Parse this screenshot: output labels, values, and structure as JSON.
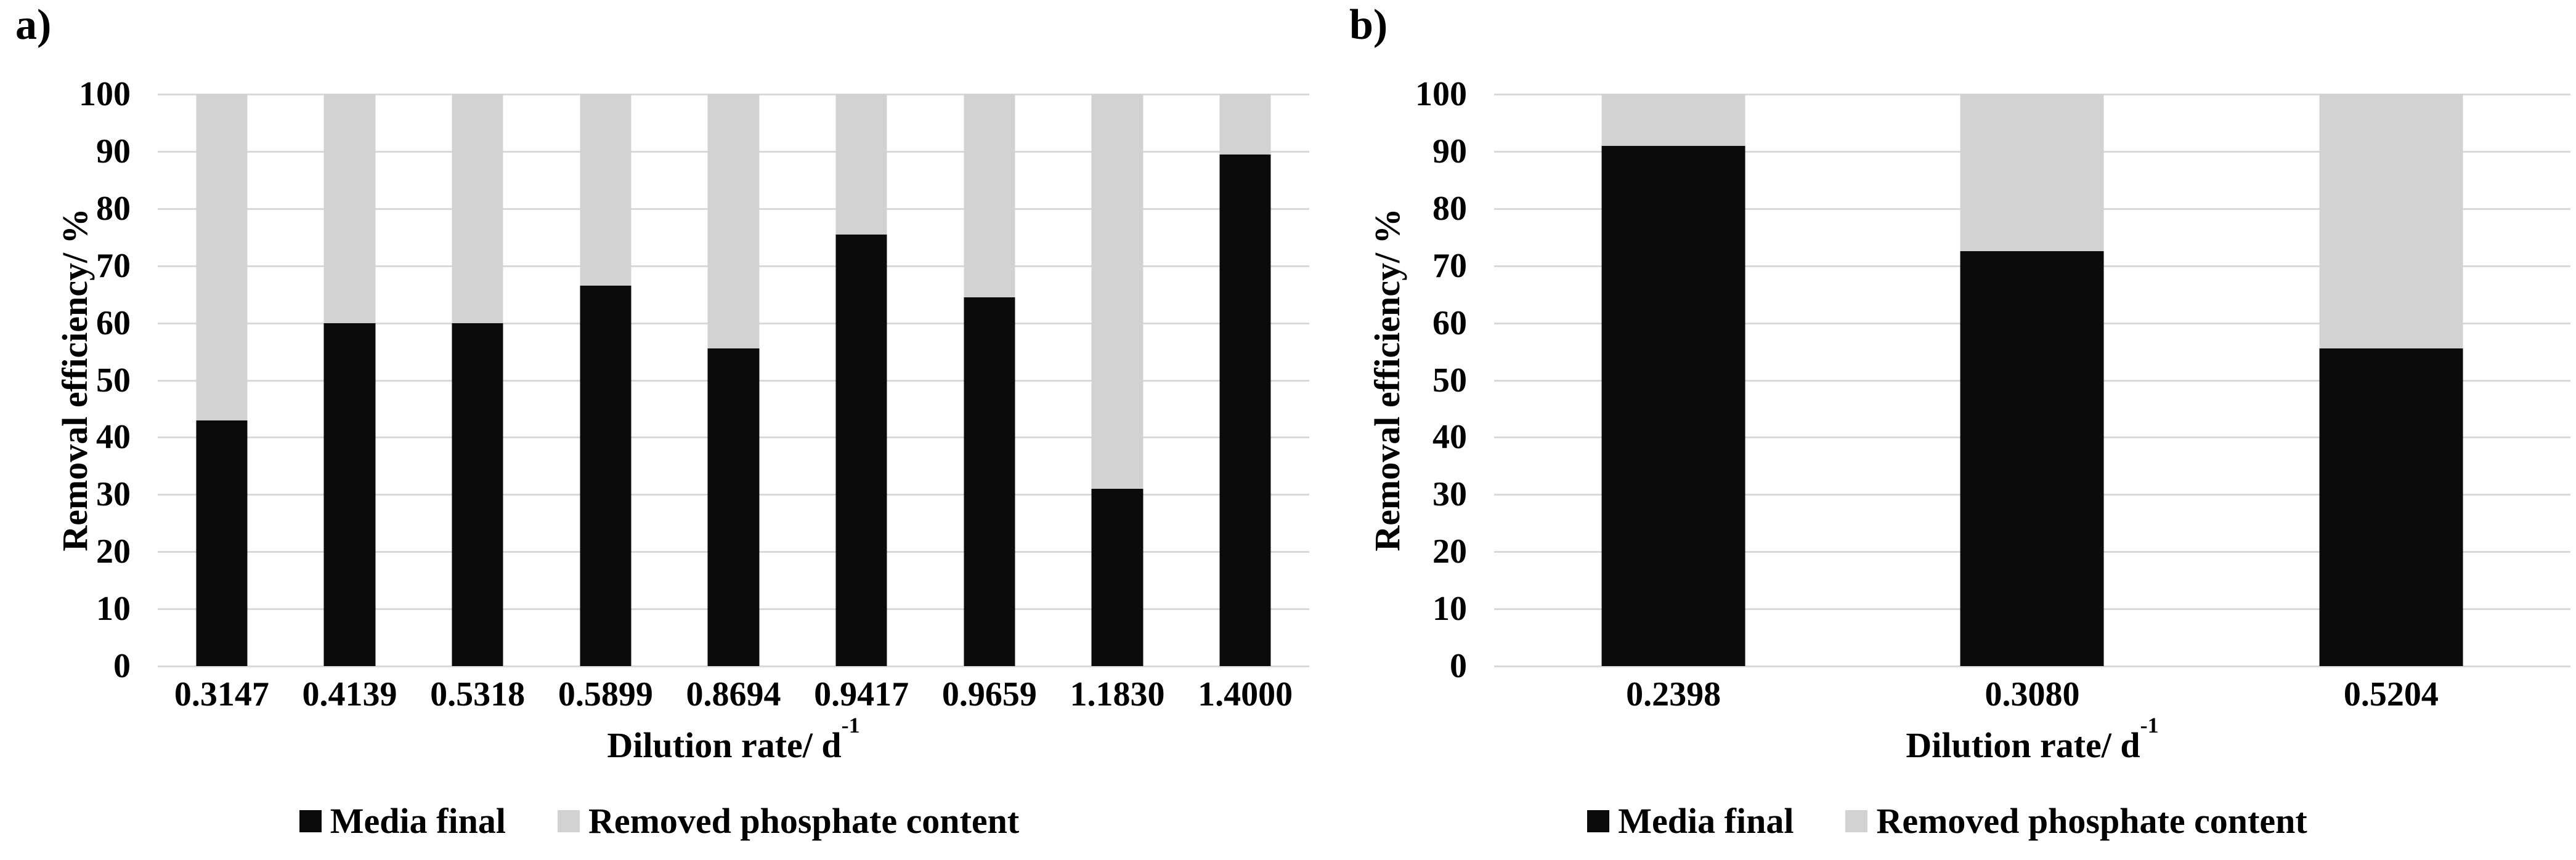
{
  "colors": {
    "media_final": "#0b0b0b",
    "removed_phosphate": "#d2d2d2",
    "gridline": "#d9d9d9",
    "background": "#ffffff",
    "text": "#000000"
  },
  "legend": {
    "media_final_label": "Media final",
    "removed_label": "Removed phosphate content"
  },
  "chart_data": [
    {
      "type": "bar",
      "stacked": true,
      "panel_label": "a)",
      "title": "",
      "xlabel": "Dilution rate/ d⁻¹",
      "xlabel_base": "Dilution rate/ d",
      "xlabel_sup": "-1",
      "ylabel": "Removal efficiency/ %",
      "ylim": [
        0,
        100
      ],
      "y_ticks": [
        100,
        90,
        80,
        70,
        60,
        50,
        40,
        30,
        20,
        10,
        0
      ],
      "grid": true,
      "legend_position": "bottom",
      "bar_width_fraction": 0.4,
      "categories": [
        "0.3147",
        "0.4139",
        "0.5318",
        "0.5899",
        "0.8694",
        "0.9417",
        "0.9659",
        "1.1830",
        "1.4000"
      ],
      "series": [
        {
          "name": "Media final",
          "color": "#0b0b0b",
          "values": [
            43,
            60,
            60,
            66.5,
            55.5,
            75.5,
            64.5,
            31,
            89.5
          ]
        },
        {
          "name": "Removed phosphate content",
          "color": "#d2d2d2",
          "values": [
            57,
            40,
            40,
            33.5,
            44.5,
            24.5,
            35.5,
            69,
            10.5
          ]
        }
      ]
    },
    {
      "type": "bar",
      "stacked": true,
      "panel_label": "b)",
      "title": "",
      "xlabel": "Dilution rate/ d⁻¹",
      "xlabel_base": "Dilution rate/ d",
      "xlabel_sup": "-1",
      "ylabel": "Removal efficiency/ %",
      "ylim": [
        0,
        100
      ],
      "y_ticks": [
        100,
        90,
        80,
        70,
        60,
        50,
        40,
        30,
        20,
        10,
        0
      ],
      "grid": true,
      "legend_position": "bottom",
      "bar_width_fraction": 0.4,
      "categories": [
        "0.2398",
        "0.3080",
        "0.5204"
      ],
      "series": [
        {
          "name": "Media final",
          "color": "#0b0b0b",
          "values": [
            91,
            72.5,
            55.5
          ]
        },
        {
          "name": "Removed phosphate content",
          "color": "#d2d2d2",
          "values": [
            9,
            27.5,
            44.5
          ]
        }
      ]
    }
  ]
}
